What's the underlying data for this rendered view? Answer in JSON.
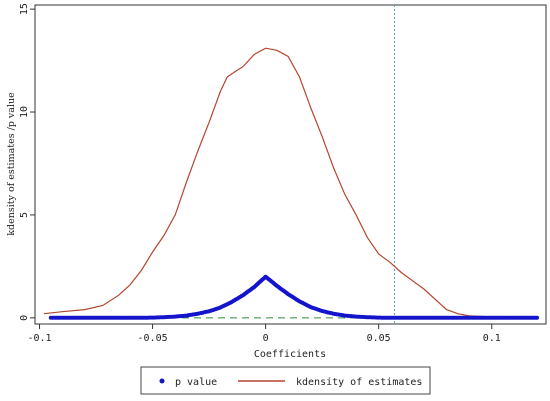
{
  "chart_data": {
    "type": "line",
    "xlabel": "Coefficients",
    "ylabel": "kdensity of estimates /p value",
    "xlim": [
      -0.102,
      0.124
    ],
    "ylim": [
      -0.3,
      15.2
    ],
    "x_ticks": [
      {
        "value": -0.1,
        "label": "-0.1"
      },
      {
        "value": -0.05,
        "label": "-0.05"
      },
      {
        "value": 0,
        "label": "0"
      },
      {
        "value": 0.05,
        "label": "0.05"
      },
      {
        "value": 0.1,
        "label": "0.1"
      }
    ],
    "y_ticks": [
      {
        "value": 0,
        "label": "0"
      },
      {
        "value": 5,
        "label": "5"
      },
      {
        "value": 10,
        "label": "10"
      },
      {
        "value": 15,
        "label": "15"
      }
    ],
    "grid": false,
    "legend_position": "bottom",
    "reference_lines": {
      "horizontal_y": 0,
      "horizontal_color": "#2e8b3d",
      "vertical_x": 0.057,
      "vertical_color": "#4fa8c9"
    },
    "series": [
      {
        "name": "p value",
        "style": "points",
        "color": "#1414cc",
        "points": [
          [
            -0.095,
            0.0
          ],
          [
            -0.087,
            0.0
          ],
          [
            -0.08,
            0.0
          ],
          [
            -0.07,
            0.0
          ],
          [
            -0.06,
            0.0
          ],
          [
            -0.05,
            0.01
          ],
          [
            -0.045,
            0.03
          ],
          [
            -0.04,
            0.06
          ],
          [
            -0.035,
            0.11
          ],
          [
            -0.03,
            0.2
          ],
          [
            -0.025,
            0.32
          ],
          [
            -0.02,
            0.5
          ],
          [
            -0.015,
            0.77
          ],
          [
            -0.01,
            1.1
          ],
          [
            -0.005,
            1.5
          ],
          [
            0.0,
            2.0
          ],
          [
            0.005,
            1.55
          ],
          [
            0.01,
            1.15
          ],
          [
            0.015,
            0.8
          ],
          [
            0.02,
            0.52
          ],
          [
            0.025,
            0.33
          ],
          [
            0.03,
            0.2
          ],
          [
            0.035,
            0.11
          ],
          [
            0.04,
            0.06
          ],
          [
            0.045,
            0.03
          ],
          [
            0.05,
            0.01
          ],
          [
            0.055,
            0.0
          ],
          [
            0.06,
            0.0
          ],
          [
            0.07,
            0.0
          ],
          [
            0.08,
            0.0
          ],
          [
            0.09,
            0.0
          ],
          [
            0.1,
            0.0
          ],
          [
            0.12,
            0.0
          ]
        ]
      },
      {
        "name": "kdensity of estimates",
        "style": "line",
        "color": "#b5452e",
        "points": [
          [
            -0.098,
            0.2
          ],
          [
            -0.09,
            0.3
          ],
          [
            -0.08,
            0.4
          ],
          [
            -0.072,
            0.6
          ],
          [
            -0.065,
            1.1
          ],
          [
            -0.06,
            1.6
          ],
          [
            -0.055,
            2.3
          ],
          [
            -0.05,
            3.2
          ],
          [
            -0.045,
            4.0
          ],
          [
            -0.04,
            5.0
          ],
          [
            -0.035,
            6.6
          ],
          [
            -0.03,
            8.1
          ],
          [
            -0.025,
            9.5
          ],
          [
            -0.02,
            11.0
          ],
          [
            -0.017,
            11.7
          ],
          [
            -0.013,
            12.0
          ],
          [
            -0.01,
            12.2
          ],
          [
            -0.005,
            12.8
          ],
          [
            0.0,
            13.1
          ],
          [
            0.005,
            13.0
          ],
          [
            0.01,
            12.7
          ],
          [
            0.015,
            11.7
          ],
          [
            0.02,
            10.2
          ],
          [
            0.025,
            8.8
          ],
          [
            0.03,
            7.3
          ],
          [
            0.035,
            6.0
          ],
          [
            0.04,
            5.0
          ],
          [
            0.045,
            3.9
          ],
          [
            0.05,
            3.1
          ],
          [
            0.055,
            2.7
          ],
          [
            0.06,
            2.2
          ],
          [
            0.065,
            1.8
          ],
          [
            0.07,
            1.4
          ],
          [
            0.075,
            0.9
          ],
          [
            0.08,
            0.4
          ],
          [
            0.085,
            0.2
          ],
          [
            0.09,
            0.1
          ],
          [
            0.1,
            0.05
          ],
          [
            0.11,
            0.05
          ],
          [
            0.12,
            0.05
          ]
        ]
      }
    ]
  }
}
